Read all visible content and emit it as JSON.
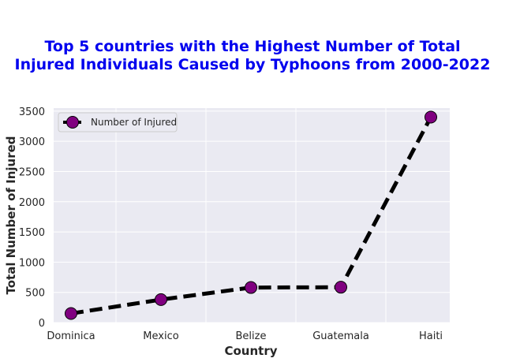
{
  "chart_data": {
    "type": "line",
    "title_lines": [
      "Top 5 countries with the Highest Number of Total",
      "Injured Individuals Caused by Typhoons from 2000-2022"
    ],
    "xlabel": "Country",
    "ylabel": "Total Number of Injured",
    "categories": [
      "Dominica",
      "Mexico",
      "Belize",
      "Guatemala",
      "Haiti"
    ],
    "series": [
      {
        "name": "Number of Injured",
        "values": [
          150,
          380,
          580,
          585,
          3400
        ]
      }
    ],
    "ylim": [
      0,
      3550
    ],
    "yticks": [
      0,
      500,
      1000,
      1500,
      2000,
      2500,
      3000,
      3500
    ],
    "grid": true,
    "legend_position": "upper-left",
    "colors": {
      "title": "#0000ee",
      "line": "#000000",
      "marker_fill": "#800080",
      "plot_background": "#eaeaf2",
      "grid": "#ffffff"
    }
  }
}
